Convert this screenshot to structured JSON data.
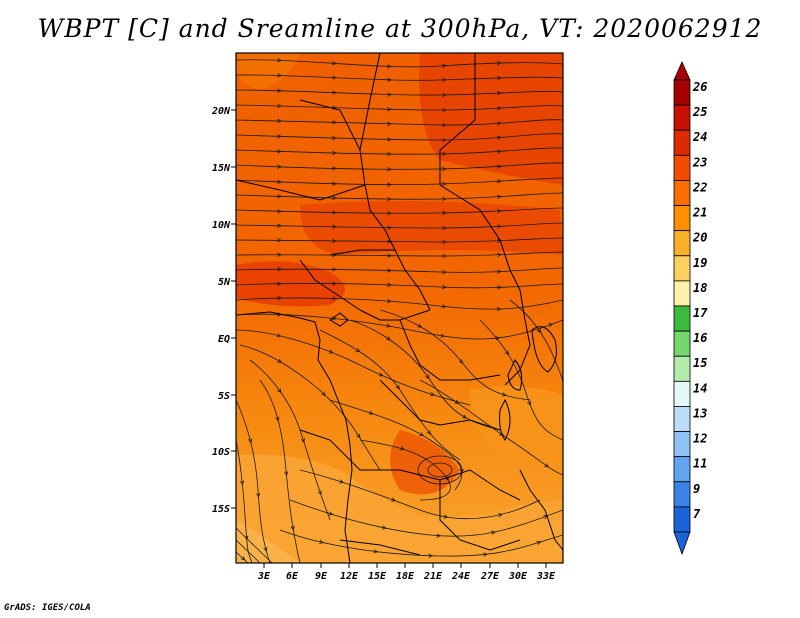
{
  "title": "WBPT [C] and Sreamline at 300hPa, VT: 2020062912",
  "credit": "GrADS: IGES/COLA",
  "map": {
    "lat_labels": [
      "20N",
      "15N",
      "10N",
      "5N",
      "EQ",
      "5S",
      "10S",
      "15S"
    ],
    "lon_labels": [
      "3E",
      "6E",
      "9E",
      "12E",
      "15E",
      "18E",
      "21E",
      "24E",
      "27E",
      "30E",
      "33E"
    ]
  },
  "colorbar": {
    "labels": [
      "26",
      "25",
      "24",
      "23",
      "22",
      "21",
      "20",
      "19",
      "18",
      "17",
      "16",
      "15",
      "14",
      "13",
      "12",
      "11",
      "9",
      "7"
    ],
    "colors": [
      "#a50000",
      "#c81000",
      "#de2a00",
      "#f04d00",
      "#fa6e00",
      "#fb9000",
      "#fbb02a",
      "#fcd060",
      "#fdf0a8",
      "#3cba3c",
      "#74d86e",
      "#b2ecaa",
      "#e4f8f8",
      "#bcdcfa",
      "#90c2f6",
      "#62a4f0",
      "#3a84e6",
      "#1c62d8"
    ]
  }
}
